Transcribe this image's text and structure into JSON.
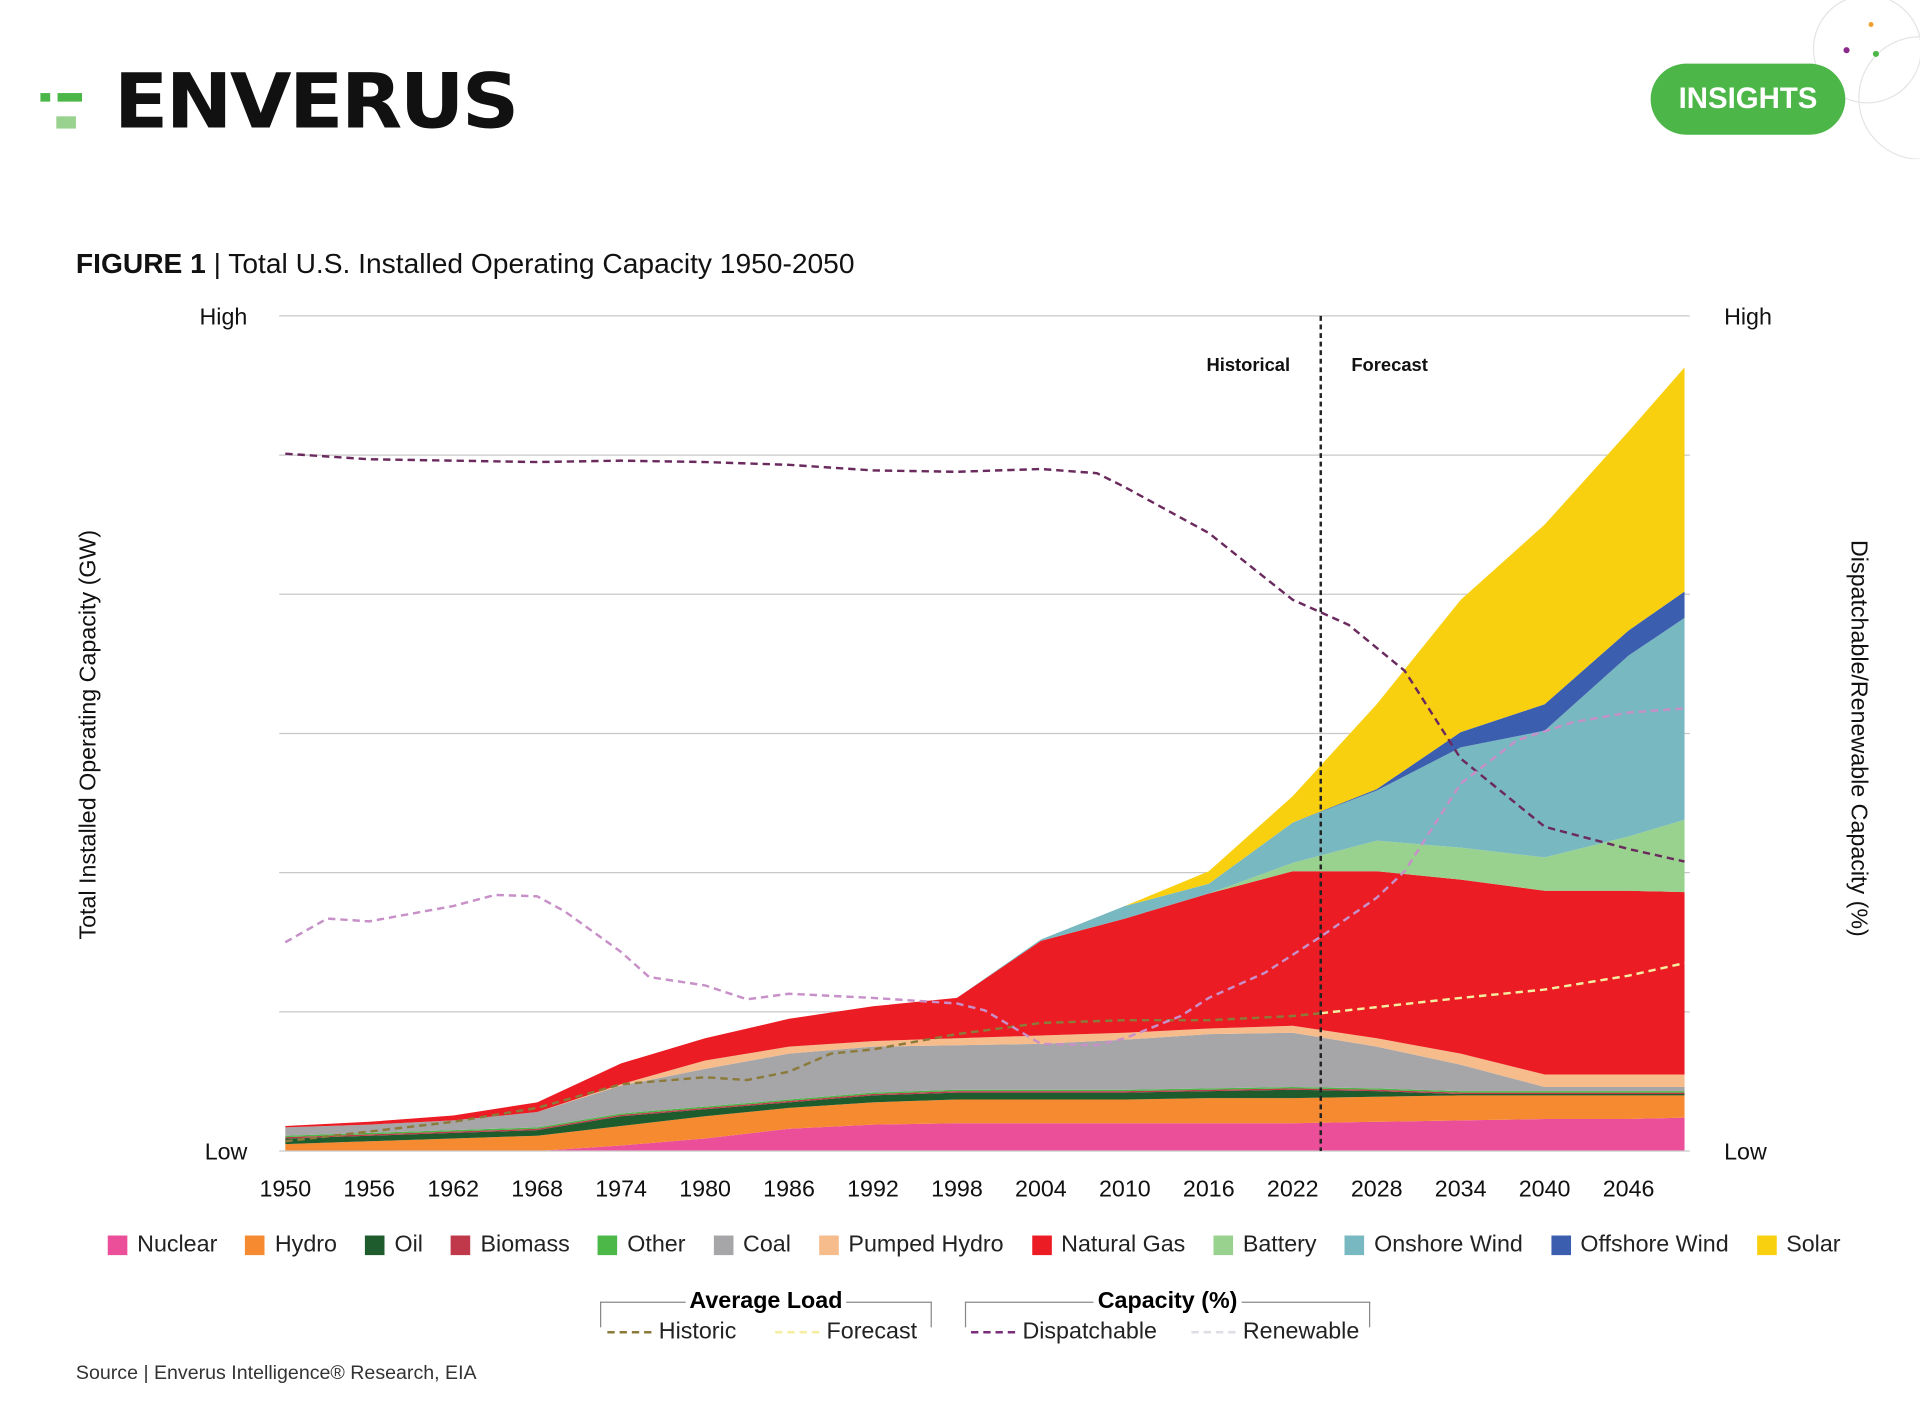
{
  "brand": {
    "logo": "ENVERUS",
    "badge": "INSIGHTS"
  },
  "figure": {
    "label": "FIGURE 1",
    "title": " | Total U.S. Installed Operating Capacity 1950-2050"
  },
  "source": "Source | Enverus Intelligence® Research, EIA",
  "chart_data": {
    "type": "area",
    "title": "Total U.S. Installed Operating Capacity 1950-2050",
    "ylabel": "Total Installed Operating Capacity (GW)",
    "y2label": "Dispatchable/Renewable Capacity (%)",
    "y_tick_labels": {
      "top": "High",
      "bottom": "Low"
    },
    "y_units": "relative gridline units (0 = Low, 6 = High)",
    "ylim": [
      0,
      6
    ],
    "grid": true,
    "xlim": [
      1950,
      2050
    ],
    "x_ticks": [
      1950,
      1956,
      1962,
      1968,
      1974,
      1980,
      1986,
      1992,
      1998,
      2004,
      2010,
      2016,
      2022,
      2028,
      2034,
      2040,
      2046
    ],
    "annotations": {
      "divider_year": 2024,
      "left": "Historical",
      "right": "Forecast"
    },
    "x": [
      1950,
      1956,
      1962,
      1968,
      1974,
      1980,
      1986,
      1992,
      1998,
      2004,
      2010,
      2016,
      2022,
      2028,
      2034,
      2040,
      2046,
      2050
    ],
    "series": [
      {
        "name": "Nuclear",
        "color": "#ec4f9a",
        "values": [
          0,
          0,
          0,
          0,
          0.04,
          0.09,
          0.16,
          0.19,
          0.2,
          0.2,
          0.2,
          0.2,
          0.2,
          0.21,
          0.22,
          0.23,
          0.23,
          0.24
        ]
      },
      {
        "name": "Hydro",
        "color": "#f68a31",
        "values": [
          0.05,
          0.07,
          0.09,
          0.11,
          0.14,
          0.16,
          0.15,
          0.16,
          0.17,
          0.17,
          0.17,
          0.18,
          0.18,
          0.18,
          0.18,
          0.17,
          0.17,
          0.16
        ]
      },
      {
        "name": "Oil",
        "color": "#1f5c2d",
        "values": [
          0.04,
          0.04,
          0.04,
          0.04,
          0.07,
          0.05,
          0.04,
          0.05,
          0.05,
          0.05,
          0.05,
          0.05,
          0.06,
          0.04,
          0.01,
          0.01,
          0.01,
          0.01
        ]
      },
      {
        "name": "Biomass",
        "color": "#c0394b",
        "values": [
          0.01,
          0.01,
          0.01,
          0.01,
          0.01,
          0.01,
          0.01,
          0.01,
          0.01,
          0.01,
          0.01,
          0.01,
          0.01,
          0.01,
          0.01,
          0.01,
          0.01,
          0.01
        ]
      },
      {
        "name": "Other",
        "color": "#4bb848",
        "values": [
          0.01,
          0.01,
          0.01,
          0.01,
          0.01,
          0.01,
          0.01,
          0.01,
          0.01,
          0.01,
          0.01,
          0.01,
          0.01,
          0.01,
          0.01,
          0.01,
          0.01,
          0.01
        ]
      },
      {
        "name": "Coal",
        "color": "#a6a6a8",
        "values": [
          0.06,
          0.06,
          0.07,
          0.11,
          0.2,
          0.27,
          0.33,
          0.33,
          0.32,
          0.33,
          0.36,
          0.39,
          0.39,
          0.3,
          0.19,
          0.03,
          0.03,
          0.03
        ]
      },
      {
        "name": "Pumped Hydro",
        "color": "#f7bc8c",
        "values": [
          0,
          0,
          0,
          0,
          0.01,
          0.06,
          0.05,
          0.04,
          0.05,
          0.06,
          0.05,
          0.04,
          0.05,
          0.06,
          0.08,
          0.09,
          0.09,
          0.09
        ]
      },
      {
        "name": "Natural Gas",
        "color": "#ec1c24",
        "values": [
          0.01,
          0.02,
          0.035,
          0.07,
          0.15,
          0.16,
          0.2,
          0.25,
          0.29,
          0.68,
          0.82,
          0.97,
          1.11,
          1.2,
          1.25,
          1.32,
          1.32,
          1.31
        ]
      },
      {
        "name": "Battery",
        "color": "#98d28e",
        "values": [
          0,
          0,
          0,
          0,
          0,
          0,
          0,
          0,
          0,
          0,
          0,
          0,
          0.06,
          0.22,
          0.23,
          0.24,
          0.39,
          0.52
        ]
      },
      {
        "name": "Onshore Wind",
        "color": "#78b8c0",
        "values": [
          0,
          0,
          0,
          0,
          0,
          0,
          0,
          0,
          0,
          0.01,
          0.09,
          0.07,
          0.29,
          0.36,
          0.72,
          0.91,
          1.3,
          1.45
        ]
      },
      {
        "name": "Offshore Wind",
        "color": "#3b5eae",
        "values": [
          0,
          0,
          0,
          0,
          0,
          0,
          0,
          0,
          0,
          0,
          0,
          0,
          0,
          0.01,
          0.11,
          0.19,
          0.18,
          0.19
        ]
      },
      {
        "name": "Solar",
        "color": "#f9d00f",
        "values": [
          0,
          0,
          0,
          0,
          0,
          0,
          0,
          0,
          0,
          0,
          0,
          0.09,
          0.19,
          0.61,
          0.95,
          1.29,
          1.43,
          1.61
        ]
      }
    ],
    "lines": [
      {
        "group": "Average Load",
        "name": "Historic",
        "color": "#8b7a3a",
        "x": [
          1950,
          1962,
          1968,
          1974,
          1980,
          1983,
          1986,
          1989,
          1992,
          1998,
          2004,
          2010,
          2016,
          2022,
          2024
        ],
        "values": [
          0.07,
          0.21,
          0.31,
          0.48,
          0.53,
          0.51,
          0.57,
          0.7,
          0.73,
          0.84,
          0.92,
          0.94,
          0.94,
          0.97,
          0.99
        ]
      },
      {
        "group": "Average Load",
        "name": "Forecast",
        "color": "#f5eea0",
        "x": [
          2024,
          2034,
          2040,
          2046,
          2050
        ],
        "values": [
          0.99,
          1.1,
          1.16,
          1.26,
          1.35
        ]
      },
      {
        "group": "Capacity (%)",
        "name": "Dispatchable",
        "color": "#6b2a5e",
        "x": [
          1950,
          1956,
          1962,
          1968,
          1974,
          1980,
          1986,
          1992,
          1998,
          2004,
          2008,
          2010,
          2016,
          2022,
          2026,
          2030,
          2034,
          2040,
          2046,
          2050
        ],
        "values": [
          5.01,
          4.97,
          4.96,
          4.95,
          4.96,
          4.95,
          4.93,
          4.89,
          4.88,
          4.9,
          4.87,
          4.77,
          4.44,
          3.96,
          3.78,
          3.45,
          2.82,
          2.33,
          2.17,
          2.08
        ]
      },
      {
        "group": "Capacity (%)",
        "name": "Renewable",
        "color": "#c890c8",
        "x": [
          1950,
          1953,
          1956,
          1962,
          1965,
          1968,
          1970,
          1974,
          1976,
          1980,
          1983,
          1986,
          1992,
          1998,
          2000,
          2004,
          2008,
          2010,
          2014,
          2016,
          2020,
          2024,
          2028,
          2030,
          2034,
          2038,
          2042,
          2046,
          2050
        ],
        "values": [
          1.5,
          1.67,
          1.65,
          1.76,
          1.84,
          1.83,
          1.72,
          1.43,
          1.25,
          1.19,
          1.09,
          1.13,
          1.1,
          1.06,
          1.01,
          0.77,
          0.76,
          0.81,
          0.97,
          1.1,
          1.28,
          1.54,
          1.82,
          2.01,
          2.64,
          2.95,
          3.08,
          3.15,
          3.18
        ]
      }
    ],
    "legend_groups": [
      "Average Load",
      "Capacity (%)"
    ],
    "legend": "bottom"
  }
}
